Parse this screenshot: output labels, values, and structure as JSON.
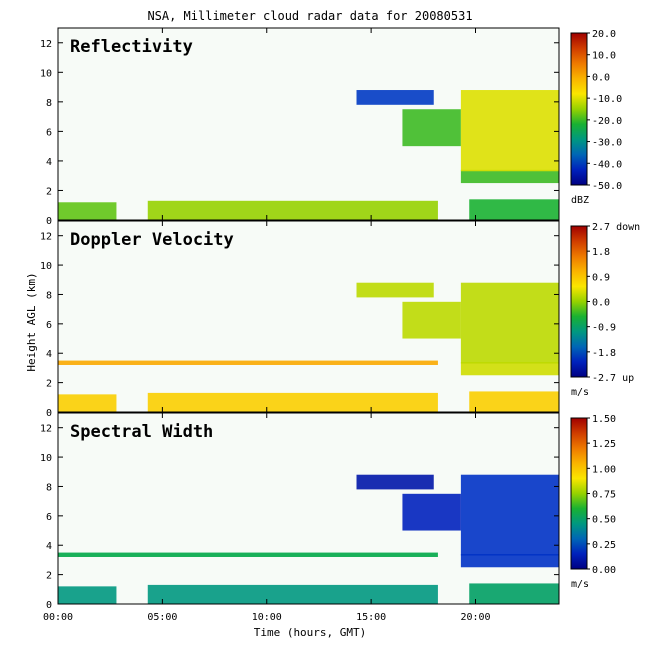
{
  "title": "NSA, Millimeter cloud radar data for 20080531",
  "xlabel": "Time (hours, GMT)",
  "ylabel": "Height AGL (km)",
  "x_ticks": [
    "00:00",
    "05:00",
    "10:00",
    "15:00",
    "20:00"
  ],
  "y_ticks": [
    "0",
    "2",
    "4",
    "6",
    "8",
    "10",
    "12"
  ],
  "colors": {
    "background": "#f7fbf7",
    "text": "#000000"
  },
  "chart_data": [
    {
      "type": "heatmap",
      "title": "Reflectivity",
      "x_range_hours": [
        0,
        24
      ],
      "y_range_km": [
        0,
        13
      ],
      "colorbar": {
        "labels": [
          "20.0",
          "10.0",
          "0.0",
          "-10.0",
          "-20.0",
          "-30.0",
          "-40.0",
          "-50.0"
        ],
        "unit": "dBZ",
        "range": [
          -50,
          20
        ]
      },
      "regions": [
        {
          "t0": 0.0,
          "t1": 2.8,
          "h0": 0.0,
          "h1": 1.2,
          "value": -18
        },
        {
          "t0": 4.3,
          "t1": 18.2,
          "h0": 0.0,
          "h1": 1.3,
          "value": -15
        },
        {
          "t0": 19.7,
          "t1": 24.0,
          "h0": 0.0,
          "h1": 1.4,
          "value": -22
        },
        {
          "t0": 19.3,
          "t1": 24.0,
          "h0": 2.5,
          "h1": 3.4,
          "value": -20
        },
        {
          "t0": 14.3,
          "t1": 18.0,
          "h0": 7.8,
          "h1": 8.8,
          "value": -40
        },
        {
          "t0": 16.5,
          "t1": 19.3,
          "h0": 5.0,
          "h1": 7.5,
          "value": -20
        },
        {
          "t0": 19.3,
          "t1": 24.0,
          "h0": 3.3,
          "h1": 8.8,
          "value": -10
        }
      ]
    },
    {
      "type": "heatmap",
      "title": "Doppler Velocity",
      "x_range_hours": [
        0,
        24
      ],
      "y_range_km": [
        0,
        13
      ],
      "colorbar": {
        "labels": [
          "2.7 down",
          "1.8",
          "0.9",
          "0.0",
          "-0.9",
          "-1.8",
          "-2.7 up"
        ],
        "unit": "m/s",
        "range": [
          -2.7,
          2.7
        ]
      },
      "regions": [
        {
          "t0": 0.0,
          "t1": 2.8,
          "h0": 0.0,
          "h1": 1.2,
          "value": 0.8
        },
        {
          "t0": 4.3,
          "t1": 18.2,
          "h0": 0.0,
          "h1": 1.3,
          "value": 0.8
        },
        {
          "t0": 19.7,
          "t1": 24.0,
          "h0": 0.0,
          "h1": 1.4,
          "value": 0.8
        },
        {
          "t0": 0.0,
          "t1": 18.2,
          "h0": 3.2,
          "h1": 3.5,
          "value": 1.2
        },
        {
          "t0": 19.3,
          "t1": 24.0,
          "h0": 2.5,
          "h1": 3.4,
          "value": 0.3
        },
        {
          "t0": 14.3,
          "t1": 18.0,
          "h0": 7.8,
          "h1": 8.8,
          "value": 0.2
        },
        {
          "t0": 16.5,
          "t1": 19.3,
          "h0": 5.0,
          "h1": 7.5,
          "value": 0.2
        },
        {
          "t0": 19.3,
          "t1": 24.0,
          "h0": 3.3,
          "h1": 8.8,
          "value": 0.2
        }
      ]
    },
    {
      "type": "heatmap",
      "title": "Spectral Width",
      "x_range_hours": [
        0,
        24
      ],
      "y_range_km": [
        0,
        13
      ],
      "colorbar": {
        "labels": [
          "1.50",
          "1.25",
          "1.00",
          "0.75",
          "0.50",
          "0.25",
          "0.00"
        ],
        "unit": "m/s",
        "range": [
          0,
          1.5
        ]
      },
      "regions": [
        {
          "t0": 0.0,
          "t1": 2.8,
          "h0": 0.0,
          "h1": 1.2,
          "value": 0.45
        },
        {
          "t0": 4.3,
          "t1": 18.2,
          "h0": 0.0,
          "h1": 1.3,
          "value": 0.45
        },
        {
          "t0": 19.7,
          "t1": 24.0,
          "h0": 0.0,
          "h1": 1.4,
          "value": 0.5
        },
        {
          "t0": 0.0,
          "t1": 18.2,
          "h0": 3.2,
          "h1": 3.5,
          "value": 0.55
        },
        {
          "t0": 19.3,
          "t1": 24.0,
          "h0": 2.5,
          "h1": 3.4,
          "value": 0.2
        },
        {
          "t0": 14.3,
          "t1": 18.0,
          "h0": 7.8,
          "h1": 8.8,
          "value": 0.1
        },
        {
          "t0": 16.5,
          "t1": 19.3,
          "h0": 5.0,
          "h1": 7.5,
          "value": 0.15
        },
        {
          "t0": 19.3,
          "t1": 24.0,
          "h0": 3.3,
          "h1": 8.8,
          "value": 0.2
        }
      ]
    }
  ]
}
